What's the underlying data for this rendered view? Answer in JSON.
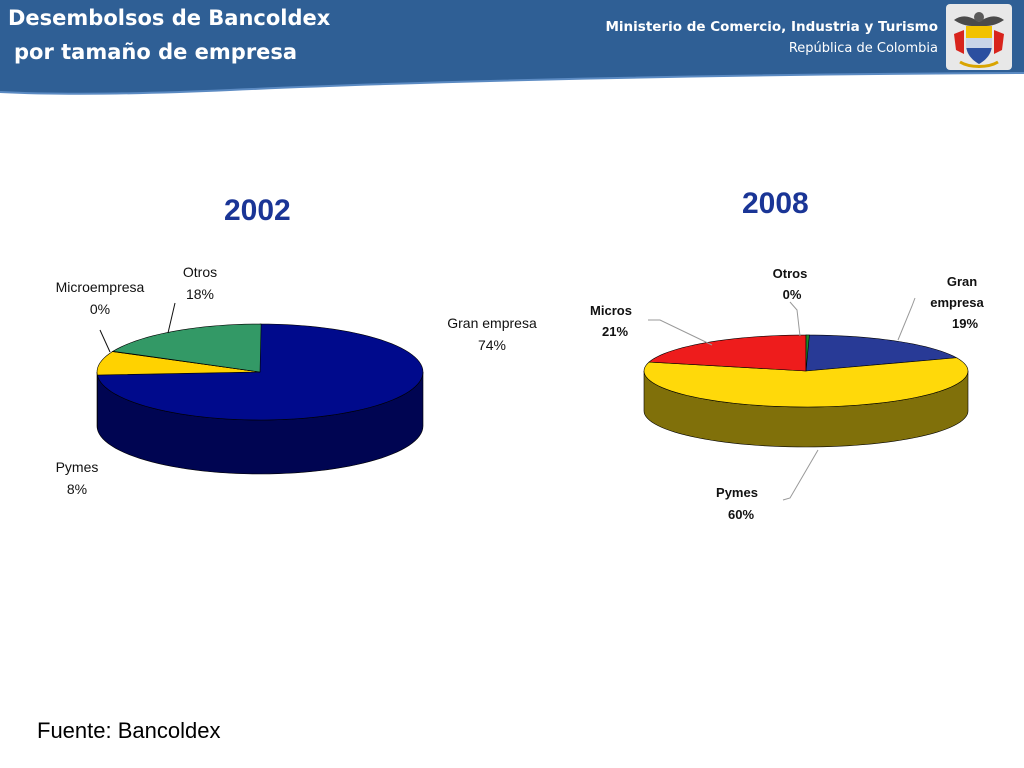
{
  "header": {
    "title_line1": "Desembolsos de Bancoldex",
    "title_line2": "por tamaño de empresa",
    "ministry": "Ministerio de Comercio, Industria y Turismo",
    "republic": "República de Colombia",
    "seal_icon": "colombia-coat-of-arms-icon",
    "banner_color": "#2f5f95"
  },
  "chart_data": [
    {
      "type": "pie",
      "title": "2002",
      "slices": [
        {
          "label": "Gran empresa",
          "value": 74,
          "value_label": "74%",
          "color": "#000a8c",
          "side_color": "#000552"
        },
        {
          "label": "Pymes",
          "value": 8,
          "value_label": "8%",
          "color": "#ffd200",
          "side_color": "#b89400"
        },
        {
          "label": "Microempresa",
          "value": 0,
          "value_label": "0%",
          "color": "#d8d8d8",
          "side_color": "#9a9a9a"
        },
        {
          "label": "Otros",
          "value": 18,
          "value_label": "18%",
          "color": "#339966",
          "side_color": "#1d6640"
        }
      ]
    },
    {
      "type": "pie",
      "title": "2008",
      "slices": [
        {
          "label": "Gran empresa",
          "value": 19,
          "value_label": "19%",
          "color": "#283a96",
          "side_color": "#141e5c"
        },
        {
          "label": "Pymes",
          "value": 60,
          "value_label": "60%",
          "color": "#ffd90a",
          "side_color": "#80700a"
        },
        {
          "label": "Micros",
          "value": 21,
          "value_label": "21%",
          "color": "#ee1c1c",
          "side_color": "#8a0f0f"
        },
        {
          "label": "Otros",
          "value": 0,
          "value_label": "0%",
          "color": "#1a8a2a",
          "side_color": "#0e4a16"
        }
      ]
    }
  ],
  "footer": {
    "source": "Fuente: Bancoldex"
  }
}
